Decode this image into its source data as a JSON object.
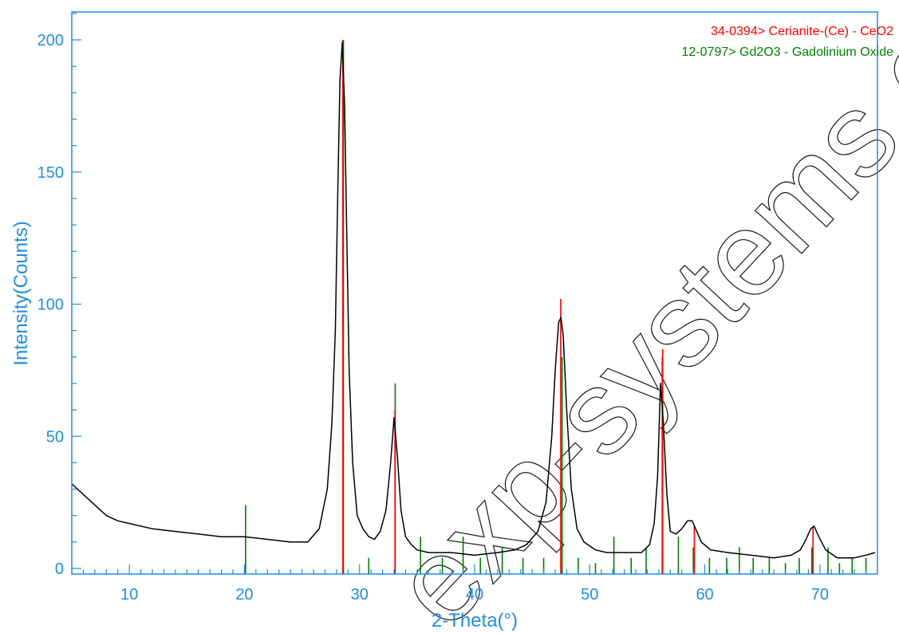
{
  "chart_data": {
    "type": "line",
    "xlabel": "2-Theta(°)",
    "ylabel": "Intensity(Counts)",
    "xlim": [
      5,
      75
    ],
    "ylim": [
      0,
      210
    ],
    "x_ticks": [
      10,
      20,
      30,
      40,
      50,
      60,
      70
    ],
    "y_ticks": [
      0,
      50,
      100,
      150,
      200
    ],
    "grid": false,
    "legend_placement": "top-right",
    "colors": {
      "axis": "#1e8fe0",
      "pattern": "#000000",
      "ceo2": "#ff0000",
      "gd2o3": "#008000"
    },
    "series": [
      {
        "x": [
          5,
          6,
          7,
          8,
          9,
          10,
          12,
          14,
          16,
          18,
          20,
          22,
          24,
          25.5,
          26.5,
          27.2,
          27.6,
          27.9,
          28.1,
          28.3,
          28.5,
          28.7,
          28.9,
          29.1,
          29.4,
          29.8,
          30.3,
          30.8,
          31.3,
          31.8,
          32.3,
          32.7,
          33.0,
          33.3,
          33.6,
          34.0,
          34.5,
          35.0,
          36,
          38,
          40,
          42,
          43.5,
          44.5,
          45.5,
          46.2,
          46.7,
          47.0,
          47.3,
          47.5,
          47.7,
          48.0,
          48.4,
          48.9,
          49.5,
          50.5,
          51.5,
          52.5,
          53.5,
          54.5,
          55.2,
          55.6,
          55.9,
          56.15,
          56.4,
          56.7,
          57.0,
          57.5,
          58.0,
          58.5,
          58.9,
          59.3,
          59.7,
          60.5,
          62,
          64,
          66,
          67.5,
          68.3,
          68.8,
          69.2,
          69.5,
          69.9,
          70.5,
          71.5,
          73,
          74,
          74.8
        ],
        "values": [
          32,
          28,
          24,
          20,
          18,
          17,
          15,
          14,
          13,
          12,
          12,
          11,
          10,
          10,
          15,
          30,
          55,
          90,
          140,
          185,
          199,
          175,
          125,
          75,
          40,
          20,
          15,
          12,
          11,
          14,
          22,
          40,
          57,
          42,
          22,
          12,
          9,
          7,
          6,
          6,
          5,
          6,
          7,
          9,
          14,
          25,
          50,
          75,
          93,
          95,
          88,
          60,
          30,
          15,
          10,
          7,
          6,
          6,
          6,
          6,
          9,
          17,
          35,
          70,
          55,
          28,
          14,
          13,
          15,
          18,
          18,
          14,
          10,
          7,
          6,
          5,
          4,
          5,
          7,
          11,
          15,
          16,
          12,
          7,
          4,
          4,
          5,
          6
        ]
      }
    ],
    "reference_patterns": [
      {
        "name": "34-0394> Cerianite-(Ce) - CeO2",
        "color": "#ff0000",
        "peaks": {
          "x": [
            28.55,
            33.08,
            47.48,
            56.34,
            59.09,
            69.4
          ],
          "values": [
            200,
            60,
            102,
            83,
            16,
            16
          ]
        }
      },
      {
        "name": "12-0797> Gd2O3 - Gadolinium Oxide",
        "color": "#008000",
        "peaks": {
          "x": [
            20.1,
            28.6,
            30.8,
            33.1,
            35.3,
            37.2,
            39.0,
            40.5,
            42.4,
            44.2,
            46.0,
            47.6,
            49.0,
            50.5,
            52.1,
            53.6,
            54.9,
            56.3,
            57.7,
            59.0,
            60.4,
            61.9,
            63.0,
            64.2,
            65.6,
            67.0,
            68.2,
            69.3,
            70.7,
            71.7,
            72.8,
            74.0
          ],
          "values": [
            24,
            200,
            4,
            70,
            12,
            4,
            12,
            4,
            8,
            4,
            4,
            80,
            4,
            2,
            12,
            4,
            8,
            80,
            12,
            8,
            4,
            4,
            8,
            4,
            4,
            2,
            4,
            8,
            8,
            2,
            4,
            4
          ]
        }
      }
    ]
  }
}
